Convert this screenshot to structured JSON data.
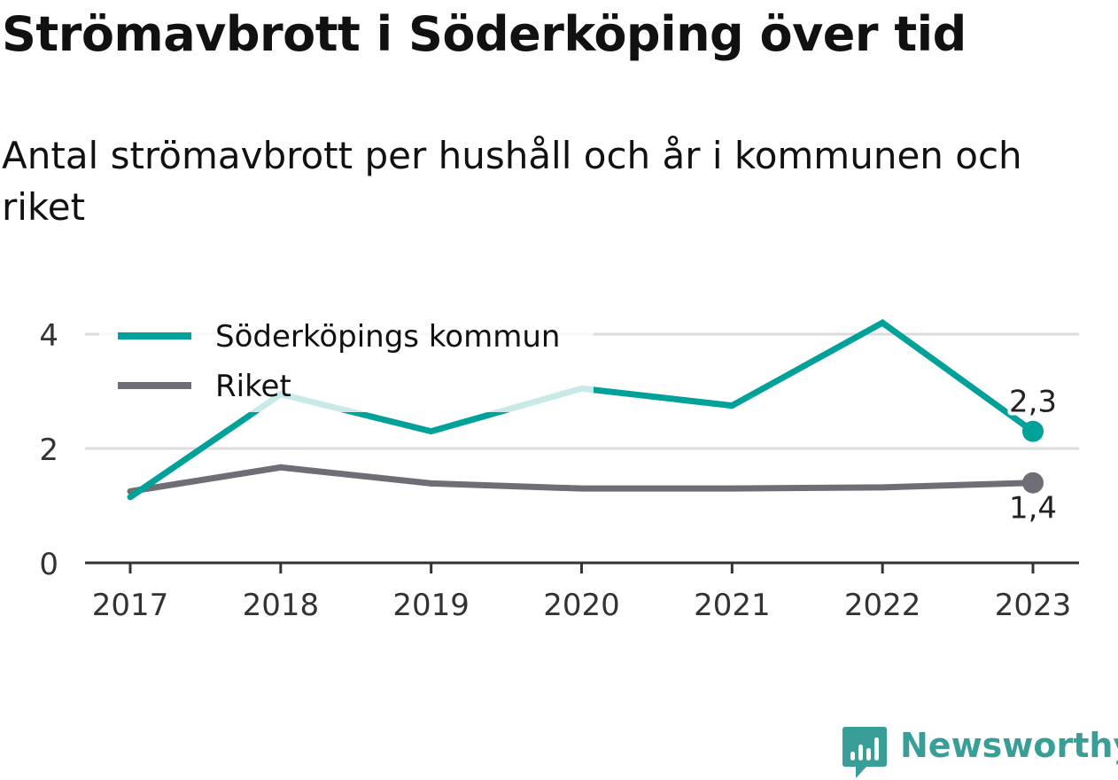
{
  "title": "Strömavbrott i Söderköping över tid",
  "subtitle": "Antal strömavbrott per hushåll och år i kommunen och riket",
  "brand": {
    "name": "Newsworthy",
    "icon": "newsworthy-logo-icon",
    "color": "#3a9e98"
  },
  "chart_data": {
    "type": "line",
    "title": "Strömavbrott i Söderköping över tid",
    "subtitle": "Antal strömavbrott per hushåll och år i kommunen och riket",
    "xlabel": "",
    "ylabel": "",
    "x": [
      "2017",
      "2018",
      "2019",
      "2020",
      "2021",
      "2022",
      "2023"
    ],
    "ylim": [
      0,
      4.4
    ],
    "yticks": [
      0,
      2,
      4
    ],
    "ytick_labels": [
      "0",
      "2",
      "4"
    ],
    "grid": true,
    "legend": "top-left",
    "series": [
      {
        "name": "Söderköpings kommun",
        "color": "#00a199",
        "values": [
          1.15,
          2.95,
          2.3,
          3.05,
          2.75,
          4.2,
          2.3
        ],
        "end_label": "2,3"
      },
      {
        "name": "Riket",
        "color": "#6f6e76",
        "values": [
          1.25,
          1.67,
          1.39,
          1.3,
          1.3,
          1.32,
          1.4
        ],
        "end_label": "1,4"
      }
    ]
  }
}
